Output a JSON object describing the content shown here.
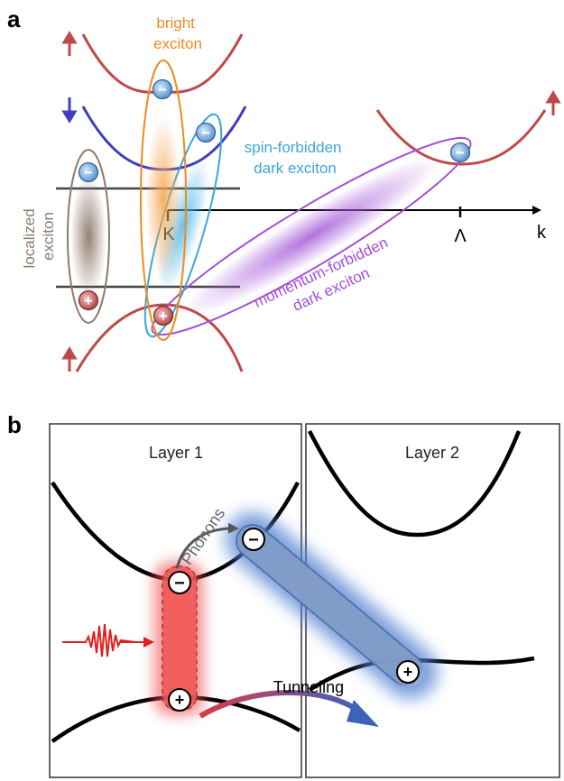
{
  "panel_a": {
    "letter": "a",
    "bright_exciton": [
      "bright",
      "exciton"
    ],
    "spin_forbidden": [
      "spin-forbidden",
      "dark exciton"
    ],
    "localized_exciton": [
      "localized",
      "exciton"
    ],
    "momentum_forbidden": [
      "momentum-forbidden",
      "dark exciton"
    ],
    "k_point": "K",
    "lambda_point": "Λ",
    "k_axis": "k",
    "minus": "−",
    "plus": "+",
    "colors": {
      "conduction_up": "#c0484a",
      "conduction_down": "#3f3fc0",
      "bright": "#f08a1e",
      "spin_forbidden": "#3aa6dc",
      "momentum_forbidden": "#a24fd6",
      "localized": "#8a7a6c"
    }
  },
  "panel_b": {
    "letter": "b",
    "layer1": "Layer 1",
    "layer2": "Layer 2",
    "phonons": "Phonons",
    "tunneling": "Tunneling",
    "minus": "−",
    "plus": "+",
    "colors": {
      "red_exciton": "#ef4b4b",
      "blue_exciton": "#4f7fd0",
      "pulse": "#e02020"
    }
  }
}
